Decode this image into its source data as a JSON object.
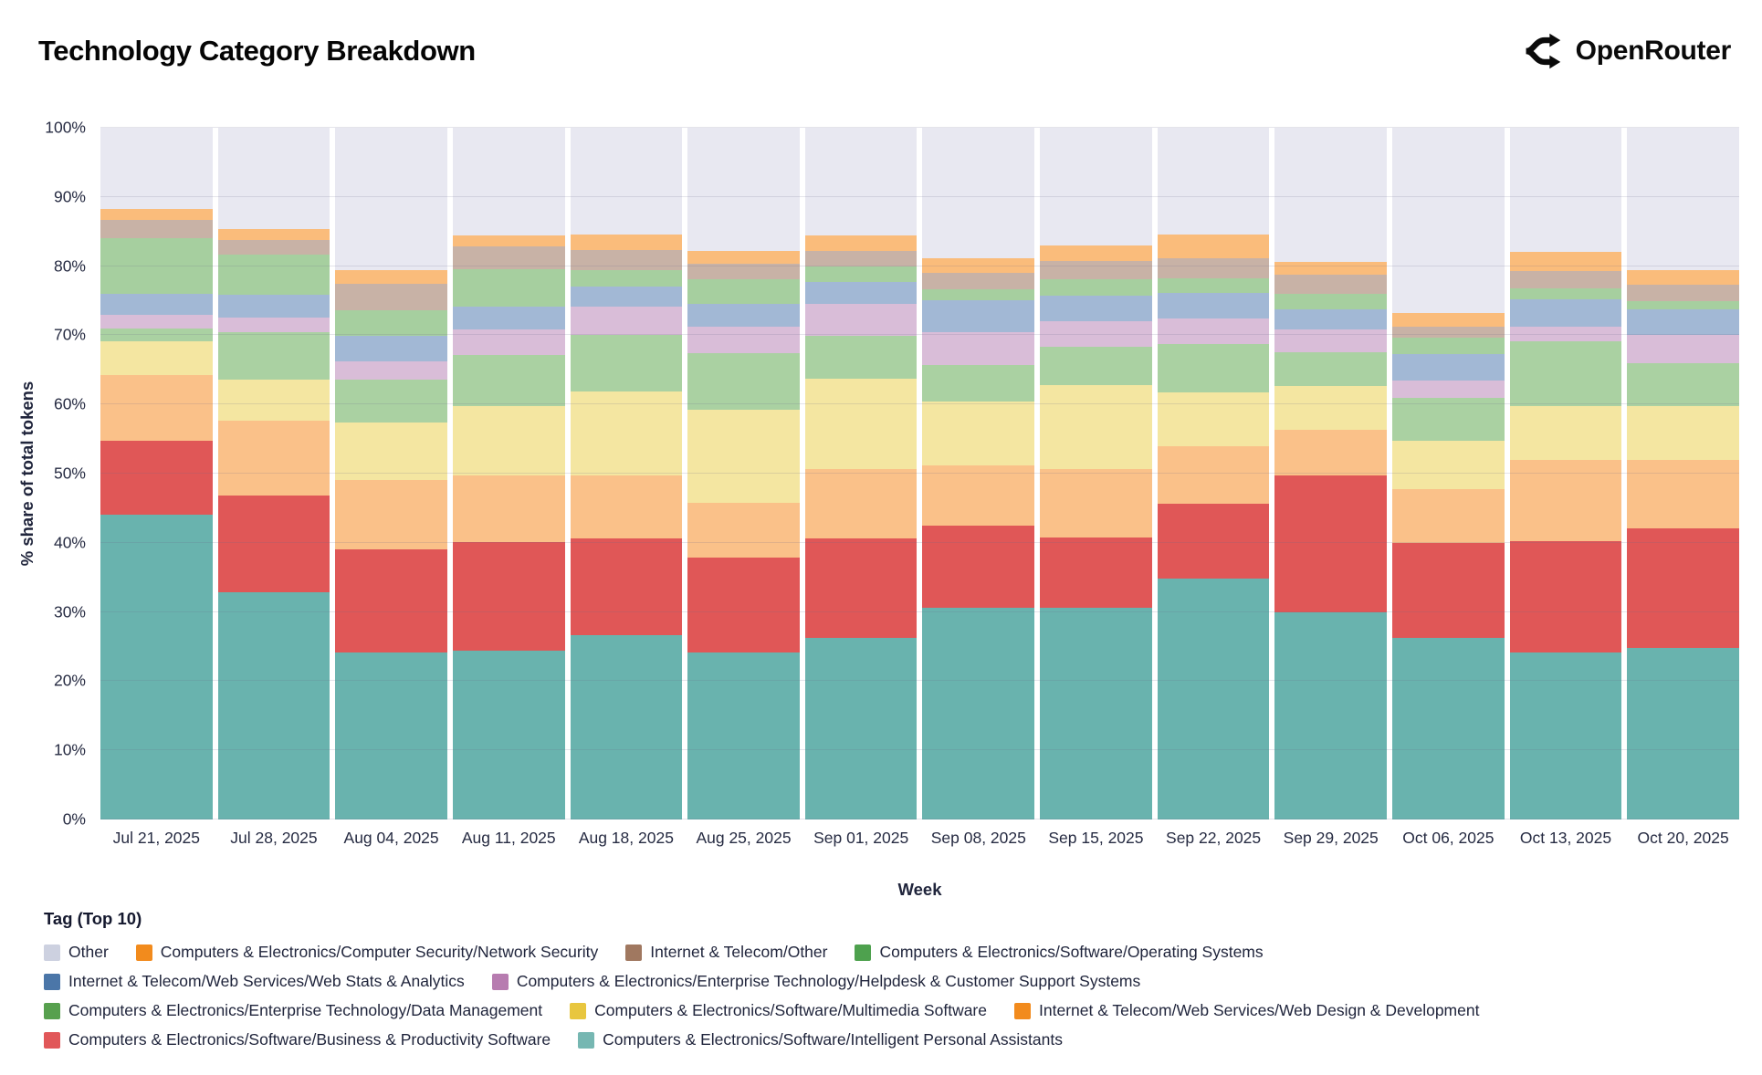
{
  "header": {
    "title": "Technology Category Breakdown",
    "brand": "OpenRouter"
  },
  "chart_data": {
    "type": "bar",
    "stacked": true,
    "title": "Technology Category Breakdown",
    "xlabel": "Week",
    "ylabel": "% share of total tokens",
    "ylim": [
      0,
      100
    ],
    "grid": true,
    "legend_title": "Tag (Top 10)",
    "legend_position": "bottom",
    "yticks": [
      "0%",
      "10%",
      "20%",
      "30%",
      "40%",
      "50%",
      "60%",
      "70%",
      "80%",
      "90%",
      "100%"
    ],
    "categories": [
      "Jul 21, 2025",
      "Jul 28, 2025",
      "Aug 04, 2025",
      "Aug 11, 2025",
      "Aug 18, 2025",
      "Aug 25, 2025",
      "Sep 01, 2025",
      "Sep 08, 2025",
      "Sep 15, 2025",
      "Sep 22, 2025",
      "Sep 29, 2025",
      "Oct 06, 2025",
      "Oct 13, 2025",
      "Oct 20, 2025"
    ],
    "series": [
      {
        "name": "Computers & Electronics/Software/Intelligent Personal Assistants",
        "legend_color": "#76b7b2",
        "band_color": "#69b3ae",
        "values": [
          44.0,
          32.8,
          24.1,
          24.4,
          26.7,
          24.1,
          26.3,
          30.6,
          30.6,
          34.8,
          30.0,
          26.3,
          24.1,
          24.8
        ]
      },
      {
        "name": "Computers & Electronics/Software/Business & Productivity Software",
        "legend_color": "#e15759",
        "band_color": "#e05757",
        "values": [
          10.7,
          14.0,
          15.0,
          15.7,
          14.0,
          13.8,
          14.4,
          11.9,
          10.2,
          10.8,
          19.8,
          13.7,
          16.2,
          17.3
        ]
      },
      {
        "name": "Internet & Telecom/Web Services/Web Design & Development",
        "legend_color": "#f28b1d",
        "band_color": "#fac189",
        "values": [
          9.6,
          10.8,
          10.0,
          9.7,
          9.0,
          7.9,
          9.9,
          8.7,
          9.8,
          8.3,
          6.5,
          7.7,
          11.7,
          9.9
        ]
      },
      {
        "name": "Computers & Electronics/Software/Multimedia Software",
        "legend_color": "#e8c63f",
        "band_color": "#f4e6a1",
        "values": [
          4.8,
          6.0,
          8.3,
          10.0,
          12.2,
          13.5,
          13.1,
          9.2,
          12.2,
          7.9,
          6.4,
          7.0,
          7.8,
          7.8
        ]
      },
      {
        "name": "Computers & Electronics/Enterprise Technology/Data Management",
        "legend_color": "#57a04e",
        "band_color": "#aad1a2",
        "values": [
          1.9,
          6.9,
          6.2,
          7.4,
          8.1,
          8.1,
          6.2,
          5.3,
          5.5,
          6.9,
          4.9,
          6.2,
          9.3,
          6.2
        ]
      },
      {
        "name": "Computers & Electronics/Enterprise Technology/Helpdesk & Customer Support Systems",
        "legend_color": "#b77cb0",
        "band_color": "#d9bdd8",
        "values": [
          1.9,
          2.1,
          2.6,
          3.6,
          4.1,
          3.8,
          4.6,
          4.8,
          3.7,
          3.7,
          3.3,
          2.6,
          2.2,
          4.1
        ]
      },
      {
        "name": "Internet & Telecom/Web Services/Web Stats & Analytics",
        "legend_color": "#4b76a8",
        "band_color": "#a2b8d5",
        "values": [
          3.1,
          3.3,
          3.7,
          3.3,
          3.0,
          3.3,
          3.2,
          4.6,
          3.7,
          3.7,
          2.9,
          3.8,
          3.9,
          3.7
        ]
      },
      {
        "name": "Computers & Electronics/Software/Operating Systems",
        "legend_color": "#4ea14e",
        "band_color": "#a6cf9f",
        "values": [
          8.0,
          5.7,
          3.7,
          5.5,
          2.3,
          3.6,
          2.3,
          1.6,
          2.4,
          2.2,
          2.2,
          2.3,
          1.6,
          1.2
        ]
      },
      {
        "name": "Internet & Telecom/Other",
        "legend_color": "#a07860",
        "band_color": "#c8b2a6",
        "values": [
          2.7,
          2.2,
          3.9,
          3.2,
          2.9,
          2.2,
          2.2,
          2.3,
          2.6,
          2.9,
          2.7,
          1.7,
          2.5,
          2.3
        ]
      },
      {
        "name": "Computers & Electronics/Computer Security/Network Security",
        "legend_color": "#f28b1d",
        "band_color": "#fabc7b",
        "values": [
          1.5,
          1.5,
          1.9,
          1.7,
          2.3,
          1.9,
          2.3,
          2.1,
          2.3,
          3.4,
          1.9,
          1.9,
          2.8,
          2.1
        ]
      },
      {
        "name": "Other",
        "legend_color": "#cdd1e0",
        "band_color": "#e8e8f1",
        "values": [
          11.8,
          14.7,
          20.6,
          15.5,
          15.4,
          17.8,
          15.5,
          18.9,
          17.0,
          15.4,
          19.4,
          26.8,
          17.9,
          20.6
        ]
      }
    ]
  }
}
